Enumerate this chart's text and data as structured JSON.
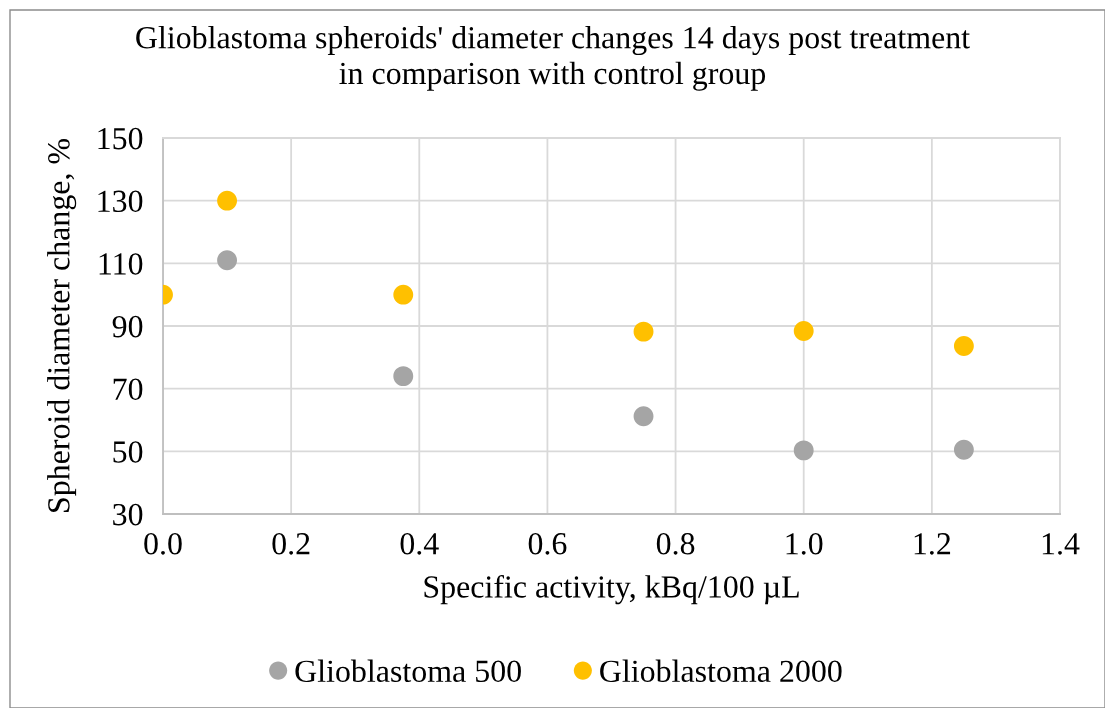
{
  "chart_data": {
    "type": "scatter",
    "title": "Glioblastoma spheroids' diameter changes 14 days post treatment\nin comparison with control group",
    "xlabel": "Specific activity, kBq/100 µL",
    "ylabel": "Spheroid diameter change, %",
    "x": [
      0,
      0.1,
      0.375,
      0.75,
      1.0,
      1.25
    ],
    "series": [
      {
        "name": "Glioblastoma 500",
        "color": "#a5a5a5",
        "values": [
          null,
          111,
          74,
          61.2,
          50.3,
          50.5
        ]
      },
      {
        "name": "Glioblastoma 2000",
        "color": "#ffc000",
        "values": [
          100,
          130,
          100,
          88.2,
          88.4,
          83.6
        ]
      }
    ],
    "xlim": [
      0,
      1.4
    ],
    "xticks": [
      {
        "value": 0,
        "label": "0.0"
      },
      0.2,
      0.4,
      0.6,
      0.8,
      {
        "value": 1,
        "label": "1.0"
      },
      1.2,
      1.4
    ],
    "ylim": [
      30,
      150
    ],
    "yticks": [
      30,
      50,
      70,
      90,
      110,
      130,
      150
    ],
    "grid": true,
    "legend": "bottom",
    "marker": "circle"
  }
}
